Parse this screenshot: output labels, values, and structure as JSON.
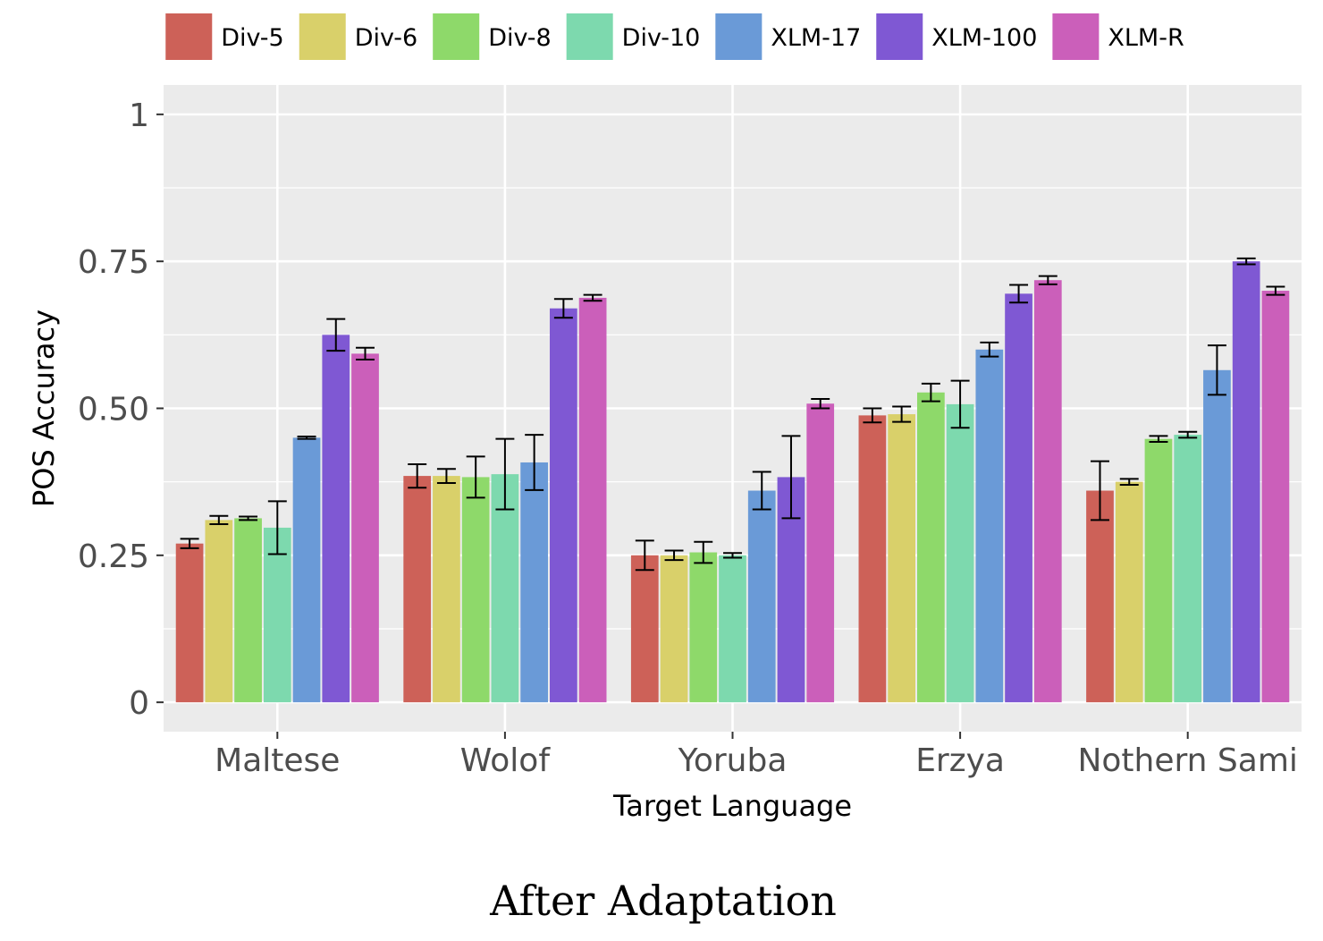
{
  "chart_data": {
    "type": "bar",
    "caption": "After Adaptation",
    "xlabel": "Target Language",
    "ylabel": "POS Accuracy",
    "ylim": [
      -0.05,
      1.05
    ],
    "yticks": [
      0,
      0.25,
      0.5,
      0.75,
      1
    ],
    "ytick_labels": [
      "0",
      "0.25",
      "0.50",
      "0.75",
      "1"
    ],
    "grid": true,
    "legend_position": "top",
    "categories": [
      "Maltese",
      "Wolof",
      "Yoruba",
      "Erzya",
      "Nothern Sami"
    ],
    "series": [
      {
        "name": "Div-5",
        "color": "#CD6158",
        "values": [
          0.27,
          0.385,
          0.25,
          0.488,
          0.36
        ],
        "errors": [
          0.008,
          0.02,
          0.025,
          0.012,
          0.05
        ]
      },
      {
        "name": "Div-6",
        "color": "#D9D06A",
        "values": [
          0.31,
          0.385,
          0.25,
          0.49,
          0.375
        ],
        "errors": [
          0.007,
          0.012,
          0.008,
          0.013,
          0.005
        ]
      },
      {
        "name": "Div-8",
        "color": "#8ED96A",
        "values": [
          0.313,
          0.383,
          0.255,
          0.527,
          0.448
        ],
        "errors": [
          0.003,
          0.035,
          0.018,
          0.015,
          0.005
        ]
      },
      {
        "name": "Div-10",
        "color": "#7DD9AE",
        "values": [
          0.297,
          0.388,
          0.25,
          0.507,
          0.455
        ],
        "errors": [
          0.045,
          0.06,
          0.004,
          0.04,
          0.005
        ]
      },
      {
        "name": "XLM-17",
        "color": "#6A9AD7",
        "values": [
          0.45,
          0.408,
          0.36,
          0.6,
          0.565
        ],
        "errors": [
          0.002,
          0.047,
          0.032,
          0.012,
          0.042
        ]
      },
      {
        "name": "XLM-100",
        "color": "#7F58D3",
        "values": [
          0.625,
          0.67,
          0.383,
          0.695,
          0.75
        ],
        "errors": [
          0.027,
          0.016,
          0.07,
          0.015,
          0.005
        ]
      },
      {
        "name": "XLM-R",
        "color": "#CB5FBA",
        "values": [
          0.593,
          0.688,
          0.508,
          0.718,
          0.7
        ],
        "errors": [
          0.01,
          0.005,
          0.008,
          0.007,
          0.007
        ]
      }
    ],
    "colors": {
      "panel_bg": "#EBEBEB",
      "grid_major": "#FFFFFF",
      "tick_mark": "#333333",
      "tick_text": "#4D4D4D"
    }
  }
}
